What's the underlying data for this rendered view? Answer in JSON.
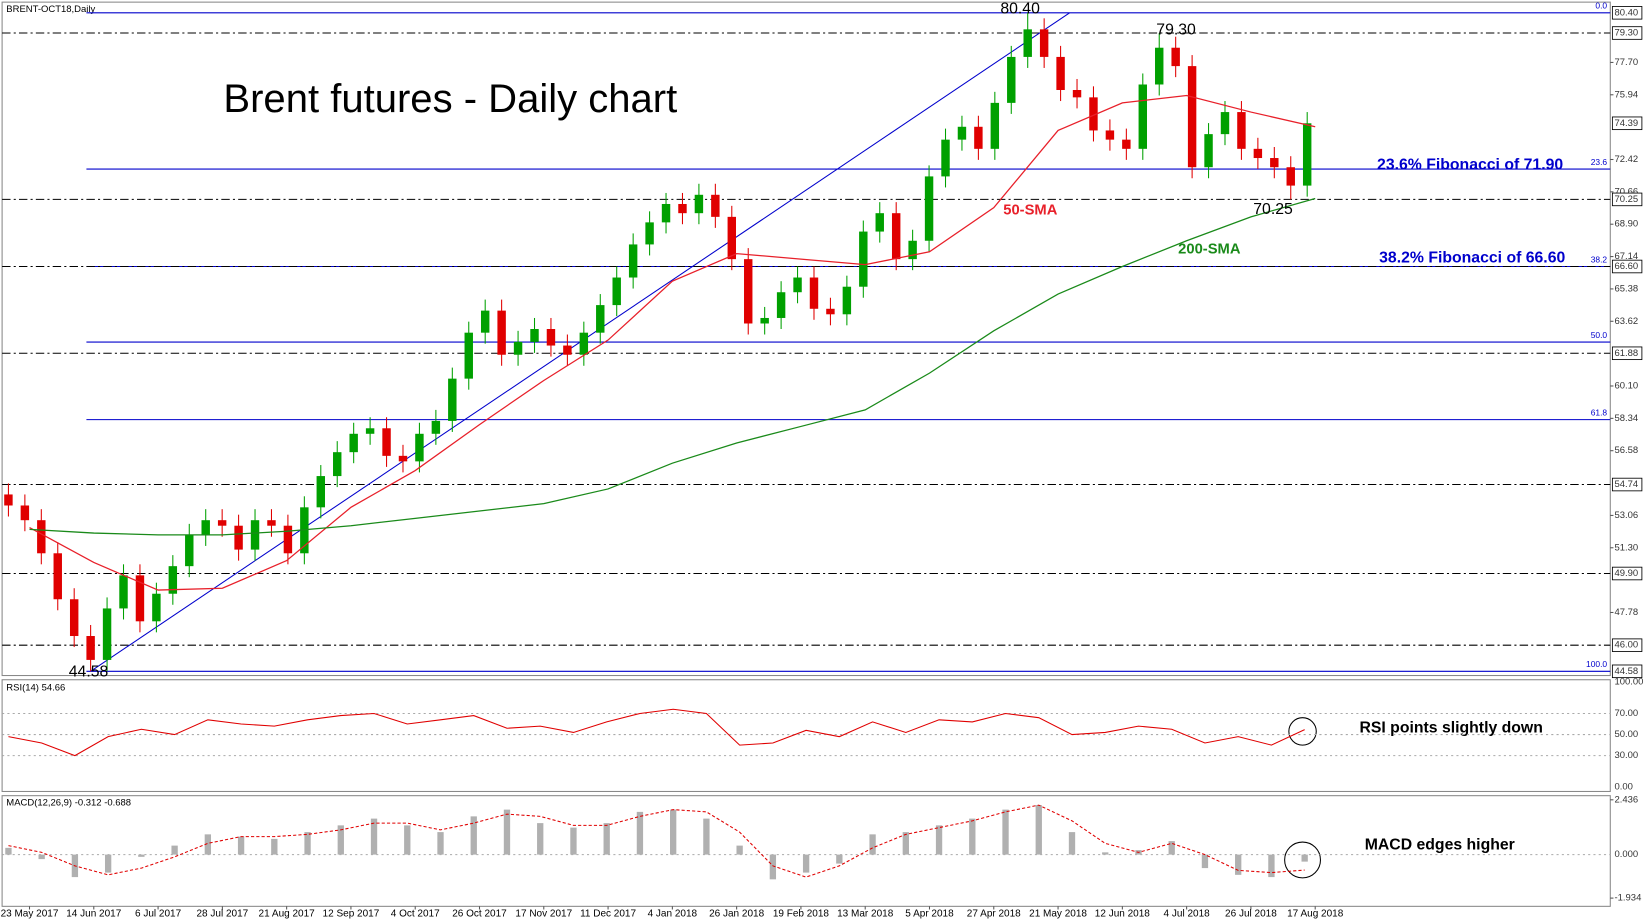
{
  "chart_data": {
    "type": "candlestick",
    "symbol": "BRENT-OCT18,Daily",
    "title": "Brent futures - Daily chart",
    "categories": [
      "23 May 2017",
      "14 Jun 2017",
      "6 Jul 2017",
      "28 Jul 2017",
      "21 Aug 2017",
      "12 Sep 2017",
      "4 Oct 2017",
      "26 Oct 2017",
      "17 Nov 2017",
      "11 Dec 2017",
      "4 Jan 2018",
      "26 Jan 2018",
      "19 Feb 2018",
      "13 Mar 2018",
      "5 Apr 2018",
      "27 Apr 2018",
      "21 May 2018",
      "12 Jun 2018",
      "4 Jul 2018",
      "26 Jul 2018",
      "17 Aug 2018"
    ],
    "ylim": [
      44.35,
      80.98
    ],
    "yticks": [
      {
        "value": 77.7,
        "label": "77.70"
      },
      75.94,
      72.42,
      70.66,
      {
        "value": 68.9,
        "label": "68.90"
      },
      67.14,
      65.38,
      63.62,
      {
        "value": 60.1,
        "label": "60.10"
      },
      58.34,
      56.58,
      53.06,
      {
        "value": 51.3,
        "label": "51.30"
      },
      47.78
    ],
    "marked_ticks": [
      {
        "value": 80.4,
        "label": "80.40"
      },
      {
        "value": 79.3,
        "label": "79.30",
        "line": "dashed"
      },
      {
        "value": 74.39,
        "label": "74.39"
      },
      {
        "value": 70.25,
        "label": "70.25",
        "line": "dashed"
      },
      {
        "value": 66.6,
        "label": "66.60",
        "line": "dashed"
      },
      {
        "value": 61.88,
        "label": "61.88",
        "line": "dashed"
      },
      {
        "value": 54.74,
        "label": "54.74",
        "line": "dashed"
      },
      {
        "value": 49.9,
        "label": "49.90",
        "line": "dashed"
      },
      {
        "value": 46.0,
        "label": "46.00",
        "line": "dashed"
      },
      {
        "value": 44.58,
        "label": "44.58"
      }
    ],
    "fibonacci": {
      "color": "#0000cc",
      "levels": [
        {
          "label": "0.0",
          "value": 80.4
        },
        {
          "label": "23.6",
          "value": 71.9
        },
        {
          "label": "38.2",
          "value": 66.6
        },
        {
          "label": "50.0",
          "value": 62.49
        },
        {
          "label": "61.8",
          "value": 58.27
        },
        {
          "label": "100.0",
          "value": 44.58
        }
      ]
    },
    "up_color": "#00a000",
    "down_color": "#e00000",
    "candles": {
      "open": [
        54.2,
        53.6,
        52.8,
        51.0,
        48.5,
        46.5,
        45.2,
        48.0,
        49.8,
        47.3,
        48.8,
        50.3,
        52.0,
        52.8,
        52.5,
        51.2,
        52.8,
        52.5,
        51.0,
        53.5,
        55.2,
        56.5,
        57.5,
        57.8,
        56.3,
        56.0,
        57.5,
        58.2,
        60.5,
        63.0,
        64.2,
        61.8,
        62.5,
        63.2,
        62.3,
        61.8,
        63.0,
        64.5,
        66.0,
        67.8,
        69.0,
        70.0,
        69.5,
        70.5,
        69.3,
        67.0,
        63.5,
        63.8,
        65.2,
        66.0,
        64.3,
        64.0,
        65.5,
        68.5,
        69.5,
        67.0,
        68.0,
        71.5,
        73.5,
        74.2,
        73.0,
        75.5,
        78.0,
        79.5,
        78.0,
        76.2,
        75.8,
        74.0,
        73.5,
        73.0,
        76.5,
        78.5,
        77.5,
        72.0,
        73.8,
        75.0,
        73.0,
        72.5,
        72.0,
        71.0
      ],
      "high": [
        54.8,
        54.2,
        53.4,
        51.6,
        49.1,
        47.1,
        48.6,
        50.4,
        50.4,
        49.4,
        50.9,
        52.6,
        53.4,
        53.4,
        53.1,
        53.4,
        53.4,
        53.1,
        54.1,
        55.8,
        57.1,
        58.1,
        58.4,
        58.4,
        56.9,
        58.1,
        58.8,
        61.1,
        63.6,
        64.8,
        64.8,
        63.1,
        63.8,
        63.8,
        62.9,
        63.6,
        65.1,
        66.6,
        68.4,
        69.6,
        70.6,
        70.6,
        71.1,
        71.1,
        69.9,
        67.6,
        64.4,
        65.8,
        66.6,
        66.6,
        64.9,
        66.1,
        69.1,
        70.1,
        70.1,
        68.6,
        72.1,
        74.1,
        74.8,
        74.8,
        76.1,
        78.6,
        80.4,
        80.1,
        78.6,
        76.8,
        76.4,
        74.6,
        74.1,
        77.1,
        79.3,
        79.1,
        78.1,
        74.4,
        75.6,
        75.6,
        73.6,
        73.1,
        72.6,
        75.0
      ],
      "low": [
        53.0,
        52.2,
        50.4,
        47.9,
        45.9,
        44.58,
        44.6,
        47.4,
        46.7,
        46.7,
        48.2,
        49.7,
        51.4,
        51.9,
        50.6,
        50.6,
        51.9,
        50.4,
        50.4,
        52.9,
        54.6,
        55.9,
        56.9,
        55.7,
        55.4,
        55.4,
        56.9,
        57.6,
        59.9,
        62.4,
        61.2,
        61.2,
        61.9,
        61.7,
        61.2,
        61.2,
        62.4,
        63.9,
        65.4,
        67.2,
        68.4,
        68.9,
        68.9,
        68.7,
        66.4,
        62.9,
        62.9,
        63.2,
        64.6,
        63.7,
        63.4,
        63.4,
        64.9,
        67.9,
        66.4,
        66.4,
        67.4,
        70.9,
        72.9,
        72.4,
        72.4,
        74.9,
        77.4,
        77.4,
        75.6,
        75.2,
        73.4,
        72.9,
        72.4,
        72.4,
        75.9,
        76.9,
        71.4,
        71.4,
        73.2,
        72.4,
        71.9,
        71.4,
        70.25,
        70.4
      ],
      "close": [
        53.6,
        52.8,
        51.0,
        48.5,
        46.5,
        45.2,
        48.0,
        49.8,
        47.3,
        48.8,
        50.3,
        52.0,
        52.8,
        52.5,
        51.2,
        52.8,
        52.5,
        51.0,
        53.5,
        55.2,
        56.5,
        57.5,
        57.8,
        56.3,
        56.0,
        57.5,
        58.2,
        60.5,
        63.0,
        64.2,
        61.8,
        62.5,
        63.2,
        62.3,
        61.8,
        63.0,
        64.5,
        66.0,
        67.8,
        69.0,
        70.0,
        69.5,
        70.5,
        69.3,
        67.0,
        63.5,
        63.8,
        65.2,
        66.0,
        64.3,
        64.0,
        65.5,
        68.5,
        69.5,
        67.0,
        68.0,
        71.5,
        73.5,
        74.2,
        73.0,
        75.5,
        78.0,
        79.5,
        78.0,
        76.2,
        75.8,
        74.0,
        73.5,
        73.0,
        76.5,
        78.5,
        77.5,
        72.0,
        73.8,
        75.0,
        73.0,
        72.5,
        72.0,
        71.0,
        74.39
      ]
    },
    "series": [
      {
        "name": "50-SMA",
        "color": "#e8202a",
        "values": [
          52.4,
          50.5,
          49.0,
          49.1,
          50.6,
          53.5,
          55.5,
          58.0,
          60.4,
          62.6,
          65.8,
          67.3,
          67.0,
          66.7,
          67.4,
          69.8,
          74.0,
          75.5,
          75.9,
          75.0,
          74.2
        ]
      },
      {
        "name": "200-SMA",
        "color": "#1a8a1a",
        "values": [
          52.3,
          52.1,
          52.0,
          52.0,
          52.2,
          52.5,
          52.9,
          53.3,
          53.7,
          54.5,
          55.9,
          57.0,
          57.9,
          58.8,
          60.8,
          63.1,
          65.1,
          66.6,
          68.0,
          69.3,
          70.3
        ]
      }
    ],
    "annotations": {
      "high": "80.40",
      "second_high": "79.30",
      "recent_low": "70.25",
      "low": "44.58",
      "fib_23": "23.6% Fibonacci of 71.90",
      "fib_38": "38.2% Fibonacci of 66.60"
    },
    "rsi": {
      "label": "RSI(14) 54.66",
      "color": "#e00000",
      "ylim": [
        -4,
        102
      ],
      "yticks": [
        {
          "value": 100,
          "label": "100.00"
        },
        {
          "value": 70,
          "label": "70.00"
        },
        {
          "value": 50,
          "label": "50.00"
        },
        {
          "value": 30,
          "label": "30.00"
        },
        {
          "value": 0,
          "label": "0.00"
        }
      ],
      "values": [
        48,
        42,
        30,
        48,
        55,
        50,
        64,
        60,
        58,
        64,
        68,
        70,
        60,
        64,
        68,
        56,
        58,
        52,
        62,
        70,
        74,
        70,
        40,
        42,
        54,
        48,
        62,
        52,
        64,
        62,
        70,
        66,
        50,
        52,
        58,
        55,
        42,
        48,
        40,
        54.66
      ],
      "note": "RSI points slightly down"
    },
    "macd": {
      "label": "MACD(12,26,9) -0.312 -0.688",
      "hist_color": "#b0b0b0",
      "signal_color": "#e00000",
      "ylim": [
        -2.3,
        2.62
      ],
      "yticks": [
        2.436,
        {
          "value": 0,
          "label": "0.000"
        },
        -1.934
      ],
      "values": [
        0.3,
        -0.2,
        -1.0,
        -0.8,
        -0.1,
        0.4,
        0.9,
        0.8,
        0.7,
        1.0,
        1.3,
        1.6,
        1.3,
        1.0,
        1.7,
        2.0,
        1.4,
        1.2,
        1.4,
        1.9,
        2.0,
        1.6,
        0.4,
        -1.1,
        -0.8,
        -0.4,
        0.9,
        1.0,
        1.3,
        1.6,
        2.0,
        2.2,
        1.0,
        0.1,
        0.2,
        0.6,
        -0.6,
        -0.9,
        -1.0,
        -0.312
      ],
      "signal": [
        0.4,
        0.1,
        -0.5,
        -0.9,
        -0.6,
        -0.1,
        0.5,
        0.8,
        0.8,
        0.9,
        1.1,
        1.4,
        1.4,
        1.1,
        1.4,
        1.8,
        1.7,
        1.3,
        1.3,
        1.7,
        2.0,
        1.9,
        1.0,
        -0.5,
        -1.0,
        -0.5,
        0.3,
        0.9,
        1.2,
        1.5,
        1.9,
        2.2,
        1.5,
        0.5,
        0.1,
        0.5,
        0.0,
        -0.7,
        -0.8,
        -0.688
      ],
      "note": "MACD edges higher"
    }
  }
}
